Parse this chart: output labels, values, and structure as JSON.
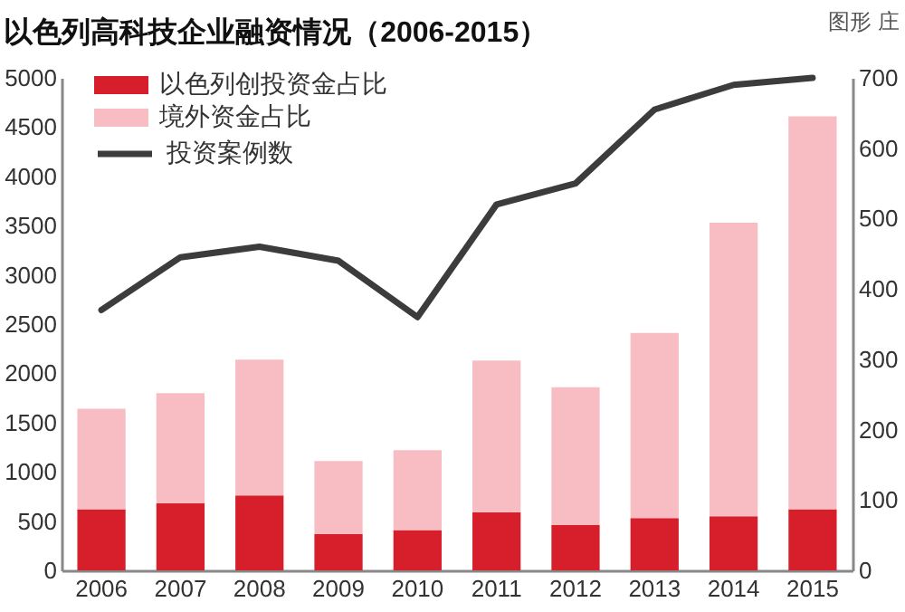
{
  "chart_data": {
    "type": "bar",
    "title": "以色列高科技企业融资情况（2006-2015）",
    "annotations": [
      "图形 庄"
    ],
    "categories": [
      "2006",
      "2007",
      "2008",
      "2009",
      "2010",
      "2011",
      "2012",
      "2013",
      "2014",
      "2015"
    ],
    "series": [
      {
        "name": "以色列创投资金占比",
        "color": "#d71f2b",
        "values": [
          620,
          680,
          760,
          370,
          410,
          590,
          460,
          530,
          550,
          620
        ]
      },
      {
        "name": "境外资金占比",
        "color": "#f8bdc3",
        "values": [
          1020,
          1120,
          1380,
          740,
          810,
          1540,
          1400,
          1880,
          2980,
          3990
        ]
      },
      {
        "name": "投资案例数",
        "color": "#3c3c3c",
        "type": "line",
        "axis": "y2",
        "values": [
          370,
          445,
          460,
          440,
          360,
          520,
          550,
          655,
          690,
          700
        ]
      }
    ],
    "stacked": true,
    "ylim": [
      0,
      5000
    ],
    "yticks": [
      0,
      500,
      1000,
      1500,
      2000,
      2500,
      3000,
      3500,
      4000,
      4500,
      5000
    ],
    "y2lim": [
      0,
      700
    ],
    "y2ticks": [
      0,
      100,
      200,
      300,
      400,
      500,
      600,
      700
    ],
    "legend": "top left",
    "grid": false
  }
}
